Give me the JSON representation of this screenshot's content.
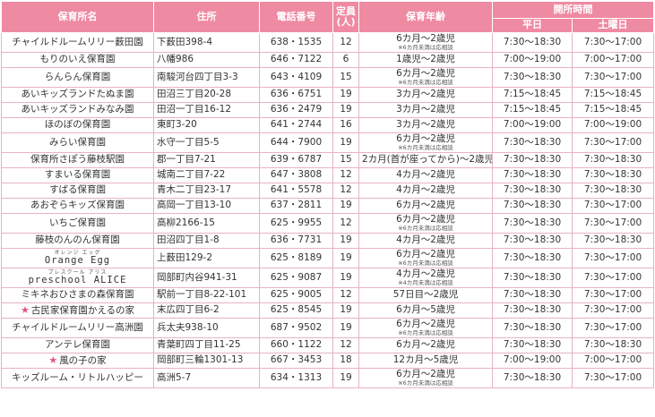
{
  "headers": {
    "name": "保育所名",
    "address": "住所",
    "phone": "電話番号",
    "capacity_top": "定員",
    "capacity_bottom": "(人)",
    "ages": "保育年齢",
    "hours": "開所時間",
    "weekday": "平日",
    "saturday": "土曜日"
  },
  "rows": [
    {
      "name": "チャイルドルームリリー薮田園",
      "address": "下薮田398-4",
      "phone": "638・1535",
      "capacity": "12",
      "age": "6カ月～2歳児",
      "note": "※6カ月未満は応相談",
      "weekday": "7:30～18:30",
      "saturday": "7:30～17:00"
    },
    {
      "name": "もりのいえ保育園",
      "address": "八幡986",
      "phone": "646・7122",
      "capacity": "6",
      "age": "1歳児～2歳児",
      "note": "",
      "weekday": "7:00～19:00",
      "saturday": "7:00～17:00"
    },
    {
      "name": "らんらん保育園",
      "address": "南駿河台四丁目3-3",
      "phone": "643・4109",
      "capacity": "15",
      "age": "6カ月～2歳児",
      "note": "※6カ月未満は応相談",
      "weekday": "7:30～18:30",
      "saturday": "7:30～17:00"
    },
    {
      "name": "あいキッズランドたぬま園",
      "address": "田沼三丁目20-28",
      "phone": "636・6751",
      "capacity": "19",
      "age": "3カ月～2歳児",
      "note": "",
      "weekday": "7:15～18:45",
      "saturday": "7:15～18:45"
    },
    {
      "name": "あいキッズランドみなみ園",
      "address": "田沼一丁目16-12",
      "phone": "636・2479",
      "capacity": "19",
      "age": "3カ月～2歳児",
      "note": "",
      "weekday": "7:15～18:45",
      "saturday": "7:15～18:45"
    },
    {
      "name": "ほのぼの保育園",
      "address": "東町3-20",
      "phone": "641・2744",
      "capacity": "16",
      "age": "3カ月～2歳児",
      "note": "",
      "weekday": "7:00～19:00",
      "saturday": "7:00～19:00"
    },
    {
      "name": "みらい保育園",
      "address": "水守一丁目5-5",
      "phone": "644・7900",
      "capacity": "19",
      "age": "6カ月～2歳児",
      "note": "※6カ月未満は応相談",
      "weekday": "7:30～18:30",
      "saturday": "7:30～17:00"
    },
    {
      "name": "保育所さぽう藤枝駅園",
      "address": "郡一丁目7-21",
      "phone": "639・6787",
      "capacity": "15",
      "age": "2カ月(首が座ってから)～2歳児",
      "note": "",
      "weekday": "7:30～18:30",
      "saturday": "7:30～18:30"
    },
    {
      "name": "すまいる保育園",
      "address": "城南二丁目7-22",
      "phone": "647・3808",
      "capacity": "12",
      "age": "4カ月～2歳児",
      "note": "",
      "weekday": "7:30～18:30",
      "saturday": "7:30～18:30"
    },
    {
      "name": "すばる保育園",
      "address": "青木二丁目23-17",
      "phone": "641・5578",
      "capacity": "12",
      "age": "4カ月～2歳児",
      "note": "",
      "weekday": "7:30～18:30",
      "saturday": "7:30～18:30"
    },
    {
      "name": "あおぞらキッズ保育園",
      "address": "高岡一丁目13-10",
      "phone": "637・2811",
      "capacity": "19",
      "age": "6カ月～2歳児",
      "note": "",
      "weekday": "7:30～18:30",
      "saturday": "7:30～17:00"
    },
    {
      "name": "いちご保育園",
      "address": "高柳2166-15",
      "phone": "625・9955",
      "capacity": "12",
      "age": "6カ月～2歳児",
      "note": "※6カ月未満は応相談",
      "weekday": "7:30～18:30",
      "saturday": "7:30～17:00"
    },
    {
      "name": "藤枝のんのん保育園",
      "address": "田沼四丁目1-8",
      "phone": "636・7731",
      "capacity": "19",
      "age": "4カ月～2歳児",
      "note": "",
      "weekday": "7:30～18:30",
      "saturday": "7:30～18:30"
    },
    {
      "name": "Orange Egg",
      "ruby": "オレンジ エッグ",
      "address": "上薮田129-2",
      "phone": "625・8189",
      "capacity": "19",
      "age": "6カ月～2歳児",
      "note": "※6カ月未満は応相談",
      "weekday": "7:30～18:30",
      "saturday": "7:30～17:00"
    },
    {
      "name": "preschool ALICE",
      "ruby": "プレスクール アリス",
      "address": "岡部町内谷941-31",
      "phone": "625・9087",
      "capacity": "19",
      "age": "4カ月～2歳児",
      "note": "※4カ月未満は応相談",
      "weekday": "7:30～18:30",
      "saturday": "7:30～17:00"
    },
    {
      "name": "ミキネおひさまの森保育園",
      "address": "駅前一丁目8-22-101",
      "phone": "625・9005",
      "capacity": "12",
      "age": "57日目～2歳児",
      "note": "",
      "weekday": "7:30～18:30",
      "saturday": "7:30～17:00"
    },
    {
      "name": "古民家保育園かえるの家",
      "star": "★",
      "address": "末広四丁目6-2",
      "phone": "625・8545",
      "capacity": "19",
      "age": "6カ月～5歳児",
      "note": "",
      "weekday": "7:30～18:30",
      "saturday": "7:30～17:00"
    },
    {
      "name": "チャイルドルームリリー高洲園",
      "address": "兵太夫938-10",
      "phone": "687・9502",
      "capacity": "19",
      "age": "6カ月～2歳児",
      "note": "※6カ月未満は応相談",
      "weekday": "7:30～18:30",
      "saturday": "7:30～17:00"
    },
    {
      "name": "アンテレ保育園",
      "address": "青葉町四丁目11-25",
      "phone": "660・1122",
      "capacity": "12",
      "age": "6カ月～2歳児",
      "note": "",
      "weekday": "7:30～18:30",
      "saturday": "7:30～18:30"
    },
    {
      "name": "風の子の家",
      "star": "★",
      "address": "岡部町三輪1301-13",
      "phone": "667・3453",
      "capacity": "18",
      "age": "12カ月～5歳児",
      "note": "",
      "weekday": "7:00～19:00",
      "saturday": "7:00～17:00"
    },
    {
      "name": "キッズルーム・リトルハッピー",
      "address": "高洲5-7",
      "phone": "634・1313",
      "capacity": "19",
      "age": "6カ月～2歳児",
      "note": "※6カ月未満は応相談",
      "weekday": "7:30～18:30",
      "saturday": "7:30～17:00"
    }
  ],
  "colors": {
    "header_bg": "#ef8aa3",
    "border": "#e9b3c0",
    "star": "#e0577c"
  }
}
